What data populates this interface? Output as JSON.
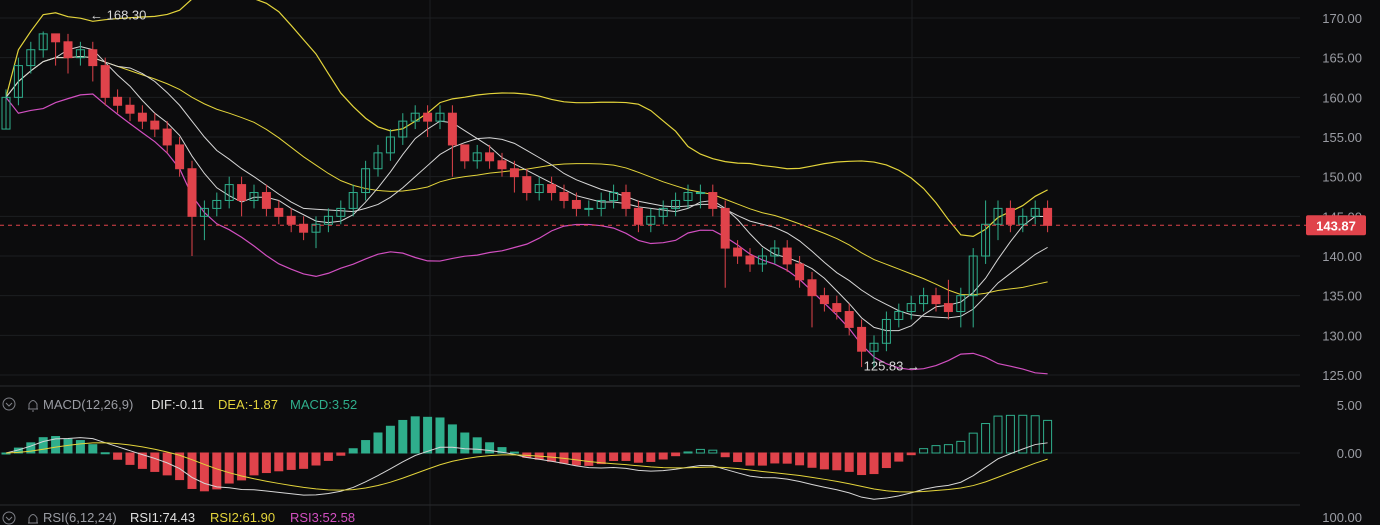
{
  "chart_data": {
    "type": "candlestick",
    "price_axis": {
      "ticks": [
        "170.00",
        "165.00",
        "160.00",
        "155.00",
        "150.00",
        "145.00",
        "140.00",
        "135.00",
        "130.00",
        "125.00"
      ],
      "ylim": [
        124,
        172
      ]
    },
    "last_price": {
      "label": "143.87",
      "value": 143.87,
      "color": "#e0434b"
    },
    "annotations": {
      "high": {
        "text": "← 168.30",
        "value": 168.3
      },
      "low": {
        "text": "125.83 →",
        "value": 125.83
      }
    },
    "colors": {
      "up": "#2fae8c",
      "down": "#e0434b",
      "upper_band": "#e3d43b",
      "lower_band": "#d14fc0",
      "ma": "#d6d6d6",
      "dea": "#e3d43b"
    },
    "candles": [
      [
        156,
        160,
        156,
        161
      ],
      [
        160,
        164,
        159,
        165
      ],
      [
        164,
        166,
        163,
        167
      ],
      [
        166,
        168,
        165,
        168.3
      ],
      [
        168,
        167,
        164,
        168
      ],
      [
        167,
        165,
        163,
        168
      ],
      [
        165,
        166,
        164,
        167
      ],
      [
        166,
        164,
        162,
        167
      ],
      [
        164,
        160,
        159,
        165
      ],
      [
        160,
        159,
        158,
        161
      ],
      [
        159,
        158,
        157,
        160
      ],
      [
        158,
        157,
        156,
        159
      ],
      [
        157,
        156,
        155,
        158
      ],
      [
        156,
        154,
        153,
        157
      ],
      [
        154,
        151,
        150,
        155
      ],
      [
        151,
        145,
        140,
        152
      ],
      [
        145,
        146,
        142,
        147
      ],
      [
        146,
        147,
        145,
        148
      ],
      [
        147,
        149,
        146,
        150
      ],
      [
        149,
        147,
        145,
        150
      ],
      [
        147,
        148,
        146,
        149
      ],
      [
        148,
        146,
        145,
        149
      ],
      [
        146,
        145,
        144,
        147
      ],
      [
        145,
        144,
        143,
        146
      ],
      [
        144,
        143,
        142,
        145
      ],
      [
        143,
        144,
        141,
        145
      ],
      [
        144,
        145,
        143,
        146
      ],
      [
        145,
        146,
        144,
        147
      ],
      [
        146,
        148,
        145,
        149
      ],
      [
        148,
        151,
        147,
        152
      ],
      [
        151,
        153,
        150,
        154
      ],
      [
        153,
        155,
        152,
        156
      ],
      [
        155,
        157,
        154,
        158
      ],
      [
        157,
        158,
        156,
        159
      ],
      [
        158,
        157,
        155,
        159
      ],
      [
        157,
        158,
        156,
        159
      ],
      [
        158,
        154,
        150,
        159
      ],
      [
        154,
        152,
        151,
        154
      ],
      [
        152,
        153,
        151,
        154
      ],
      [
        153,
        152,
        151,
        154
      ],
      [
        152,
        151,
        150,
        153
      ],
      [
        151,
        150,
        148,
        152
      ],
      [
        150,
        148,
        147,
        151
      ],
      [
        148,
        149,
        147,
        150
      ],
      [
        149,
        148,
        147,
        150
      ],
      [
        148,
        147,
        146,
        149
      ],
      [
        147,
        146,
        145,
        148
      ],
      [
        146,
        146,
        145,
        147
      ],
      [
        146,
        147,
        145,
        148
      ],
      [
        147,
        148,
        146,
        149
      ],
      [
        148,
        146,
        145,
        149
      ],
      [
        146,
        144,
        143,
        147
      ],
      [
        144,
        145,
        143,
        146
      ],
      [
        145,
        146,
        144,
        147
      ],
      [
        146,
        147,
        145,
        148
      ],
      [
        147,
        148,
        146,
        149
      ],
      [
        148,
        148,
        146,
        149
      ],
      [
        148,
        146,
        145,
        149
      ],
      [
        146,
        141,
        136,
        147
      ],
      [
        141,
        140,
        139,
        142
      ],
      [
        140,
        139,
        138,
        141
      ],
      [
        139,
        140,
        138,
        141
      ],
      [
        140,
        141,
        139,
        142
      ],
      [
        141,
        139,
        138,
        142
      ],
      [
        139,
        137,
        136,
        140
      ],
      [
        137,
        135,
        131,
        138
      ],
      [
        135,
        134,
        133,
        136
      ],
      [
        134,
        133,
        132,
        135
      ],
      [
        133,
        131,
        130,
        134
      ],
      [
        131,
        128,
        126,
        132
      ],
      [
        128,
        129,
        125.83,
        130
      ],
      [
        129,
        132,
        128,
        133
      ],
      [
        132,
        133,
        131,
        134
      ],
      [
        133,
        134,
        132,
        135
      ],
      [
        134,
        135,
        133,
        136
      ],
      [
        135,
        134,
        133,
        136
      ],
      [
        134,
        133,
        132,
        137
      ],
      [
        133,
        135,
        131,
        136
      ],
      [
        135,
        140,
        131,
        141
      ],
      [
        140,
        144,
        139,
        147
      ],
      [
        144,
        146,
        142,
        147
      ],
      [
        146,
        144,
        143,
        147
      ],
      [
        144,
        145,
        143,
        146
      ],
      [
        145,
        146,
        144,
        147
      ],
      [
        146,
        143.87,
        143,
        147
      ]
    ],
    "macd": {
      "label": "MACD(12,26,9)",
      "dif_label": "DIF:-0.11",
      "dea_label": "DEA:-1.87",
      "hist_label": "MACD:3.52",
      "ticks": [
        "5.00",
        "0.00"
      ],
      "ylim": [
        -5,
        5
      ]
    },
    "rsi": {
      "label": "RSI(6,12,24)",
      "rsi1_label": "RSI1:74.43",
      "rsi2_label": "RSI2:61.90",
      "rsi3_label": "RSI3:52.58",
      "tick": "100.00"
    }
  }
}
